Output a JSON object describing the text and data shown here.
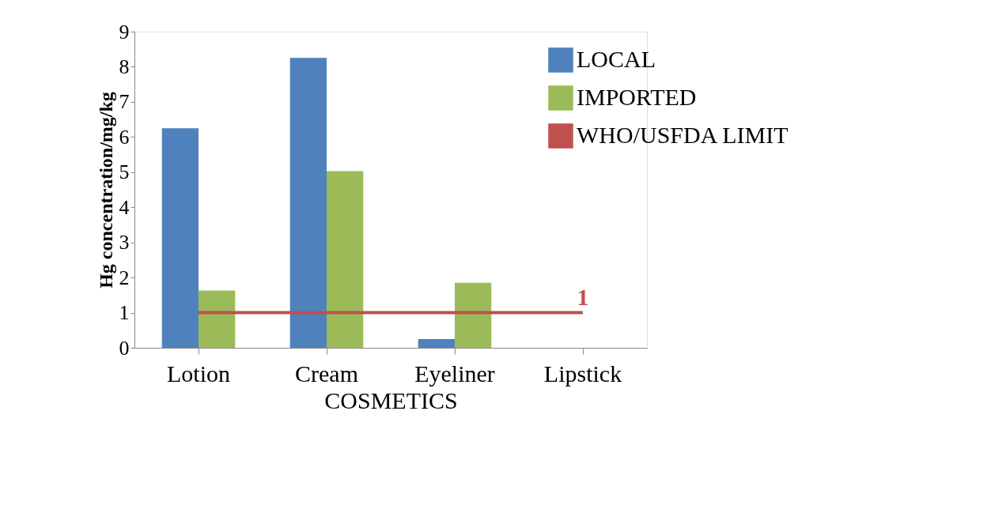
{
  "chart_data": {
    "type": "bar",
    "xlabel": "COSMETICS",
    "ylabel": "Hg concentration/mg/kg",
    "categories": [
      "Lotion",
      "Cream",
      "Eyeliner",
      "Lipstick"
    ],
    "series": [
      {
        "name": "LOCAL",
        "color": "#4f81bd",
        "values": [
          6.25,
          8.25,
          0.25,
          null
        ]
      },
      {
        "name": "IMPORTED",
        "color": "#9bbb59",
        "values": [
          1.63,
          5.03,
          1.85,
          null
        ]
      },
      {
        "name": "WHO/USFDA LIMIT",
        "type": "line",
        "color": "#c0504d",
        "values": [
          1,
          1,
          1,
          1
        ]
      }
    ],
    "annotations": [
      {
        "text": "1",
        "x": "Lipstick",
        "y": 1
      }
    ],
    "ylim": [
      0,
      9
    ],
    "yticks": [
      0,
      1,
      2,
      3,
      4,
      5,
      6,
      7,
      8,
      9
    ],
    "grid": false,
    "legend": "top right"
  }
}
